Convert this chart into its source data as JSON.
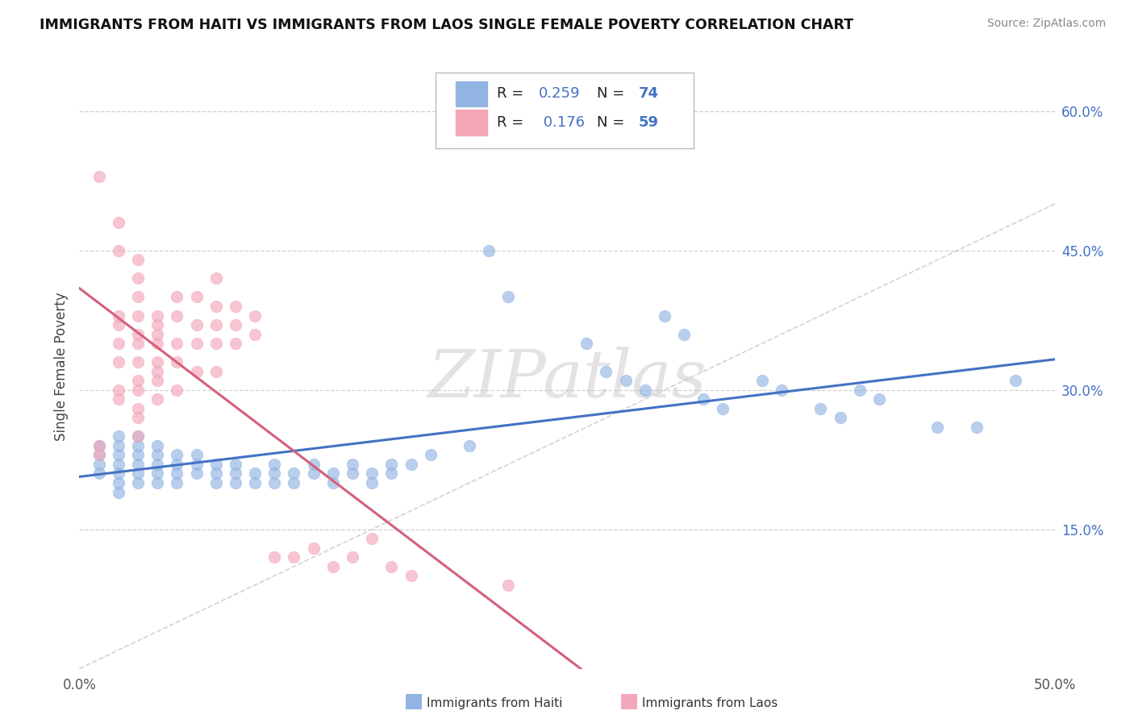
{
  "title": "IMMIGRANTS FROM HAITI VS IMMIGRANTS FROM LAOS SINGLE FEMALE POVERTY CORRELATION CHART",
  "source": "Source: ZipAtlas.com",
  "ylabel": "Single Female Poverty",
  "xlim": [
    0.0,
    0.5
  ],
  "ylim": [
    0.0,
    0.65
  ],
  "xticks": [
    0.0,
    0.1,
    0.2,
    0.3,
    0.4,
    0.5
  ],
  "xtick_labels": [
    "0.0%",
    "",
    "",
    "",
    "",
    "50.0%"
  ],
  "ytick_labels": [
    "15.0%",
    "30.0%",
    "45.0%",
    "60.0%"
  ],
  "yticks": [
    0.15,
    0.3,
    0.45,
    0.6
  ],
  "haiti_color": "#92b4e3",
  "laos_color": "#f4a7b9",
  "haiti_line_color": "#4472c4",
  "laos_line_color": "#d4607a",
  "diagonal_color": "#c8c8c8",
  "background_color": "#ffffff",
  "grid_color": "#d0d0d0",
  "watermark": "ZIPatlas",
  "haiti_scatter": [
    [
      0.01,
      0.22
    ],
    [
      0.01,
      0.24
    ],
    [
      0.01,
      0.21
    ],
    [
      0.01,
      0.23
    ],
    [
      0.02,
      0.22
    ],
    [
      0.02,
      0.23
    ],
    [
      0.02,
      0.24
    ],
    [
      0.02,
      0.25
    ],
    [
      0.02,
      0.21
    ],
    [
      0.02,
      0.2
    ],
    [
      0.02,
      0.19
    ],
    [
      0.03,
      0.22
    ],
    [
      0.03,
      0.23
    ],
    [
      0.03,
      0.24
    ],
    [
      0.03,
      0.21
    ],
    [
      0.03,
      0.2
    ],
    [
      0.03,
      0.25
    ],
    [
      0.04,
      0.22
    ],
    [
      0.04,
      0.23
    ],
    [
      0.04,
      0.21
    ],
    [
      0.04,
      0.2
    ],
    [
      0.04,
      0.24
    ],
    [
      0.05,
      0.22
    ],
    [
      0.05,
      0.21
    ],
    [
      0.05,
      0.23
    ],
    [
      0.05,
      0.2
    ],
    [
      0.06,
      0.22
    ],
    [
      0.06,
      0.21
    ],
    [
      0.06,
      0.23
    ],
    [
      0.07,
      0.22
    ],
    [
      0.07,
      0.21
    ],
    [
      0.07,
      0.2
    ],
    [
      0.08,
      0.22
    ],
    [
      0.08,
      0.21
    ],
    [
      0.08,
      0.2
    ],
    [
      0.09,
      0.21
    ],
    [
      0.09,
      0.2
    ],
    [
      0.1,
      0.21
    ],
    [
      0.1,
      0.2
    ],
    [
      0.1,
      0.22
    ],
    [
      0.11,
      0.2
    ],
    [
      0.11,
      0.21
    ],
    [
      0.12,
      0.22
    ],
    [
      0.12,
      0.21
    ],
    [
      0.13,
      0.2
    ],
    [
      0.13,
      0.21
    ],
    [
      0.14,
      0.22
    ],
    [
      0.14,
      0.21
    ],
    [
      0.15,
      0.21
    ],
    [
      0.15,
      0.2
    ],
    [
      0.16,
      0.22
    ],
    [
      0.16,
      0.21
    ],
    [
      0.17,
      0.22
    ],
    [
      0.18,
      0.23
    ],
    [
      0.2,
      0.24
    ],
    [
      0.21,
      0.45
    ],
    [
      0.22,
      0.4
    ],
    [
      0.26,
      0.35
    ],
    [
      0.27,
      0.32
    ],
    [
      0.28,
      0.31
    ],
    [
      0.29,
      0.3
    ],
    [
      0.3,
      0.38
    ],
    [
      0.31,
      0.36
    ],
    [
      0.32,
      0.29
    ],
    [
      0.33,
      0.28
    ],
    [
      0.35,
      0.31
    ],
    [
      0.36,
      0.3
    ],
    [
      0.38,
      0.28
    ],
    [
      0.39,
      0.27
    ],
    [
      0.4,
      0.3
    ],
    [
      0.41,
      0.29
    ],
    [
      0.44,
      0.26
    ],
    [
      0.46,
      0.26
    ],
    [
      0.48,
      0.31
    ]
  ],
  "laos_scatter": [
    [
      0.01,
      0.23
    ],
    [
      0.01,
      0.24
    ],
    [
      0.01,
      0.53
    ],
    [
      0.02,
      0.3
    ],
    [
      0.02,
      0.33
    ],
    [
      0.02,
      0.35
    ],
    [
      0.02,
      0.37
    ],
    [
      0.02,
      0.29
    ],
    [
      0.02,
      0.38
    ],
    [
      0.02,
      0.45
    ],
    [
      0.02,
      0.48
    ],
    [
      0.03,
      0.28
    ],
    [
      0.03,
      0.3
    ],
    [
      0.03,
      0.31
    ],
    [
      0.03,
      0.33
    ],
    [
      0.03,
      0.35
    ],
    [
      0.03,
      0.36
    ],
    [
      0.03,
      0.38
    ],
    [
      0.03,
      0.4
    ],
    [
      0.03,
      0.42
    ],
    [
      0.03,
      0.44
    ],
    [
      0.03,
      0.27
    ],
    [
      0.03,
      0.25
    ],
    [
      0.04,
      0.29
    ],
    [
      0.04,
      0.31
    ],
    [
      0.04,
      0.32
    ],
    [
      0.04,
      0.33
    ],
    [
      0.04,
      0.35
    ],
    [
      0.04,
      0.36
    ],
    [
      0.04,
      0.37
    ],
    [
      0.04,
      0.38
    ],
    [
      0.05,
      0.3
    ],
    [
      0.05,
      0.33
    ],
    [
      0.05,
      0.35
    ],
    [
      0.05,
      0.38
    ],
    [
      0.05,
      0.4
    ],
    [
      0.06,
      0.32
    ],
    [
      0.06,
      0.35
    ],
    [
      0.06,
      0.37
    ],
    [
      0.06,
      0.4
    ],
    [
      0.07,
      0.32
    ],
    [
      0.07,
      0.35
    ],
    [
      0.07,
      0.37
    ],
    [
      0.07,
      0.39
    ],
    [
      0.07,
      0.42
    ],
    [
      0.08,
      0.35
    ],
    [
      0.08,
      0.37
    ],
    [
      0.08,
      0.39
    ],
    [
      0.09,
      0.36
    ],
    [
      0.09,
      0.38
    ],
    [
      0.1,
      0.12
    ],
    [
      0.11,
      0.12
    ],
    [
      0.12,
      0.13
    ],
    [
      0.13,
      0.11
    ],
    [
      0.14,
      0.12
    ],
    [
      0.15,
      0.14
    ],
    [
      0.16,
      0.11
    ],
    [
      0.17,
      0.1
    ],
    [
      0.22,
      0.09
    ]
  ]
}
